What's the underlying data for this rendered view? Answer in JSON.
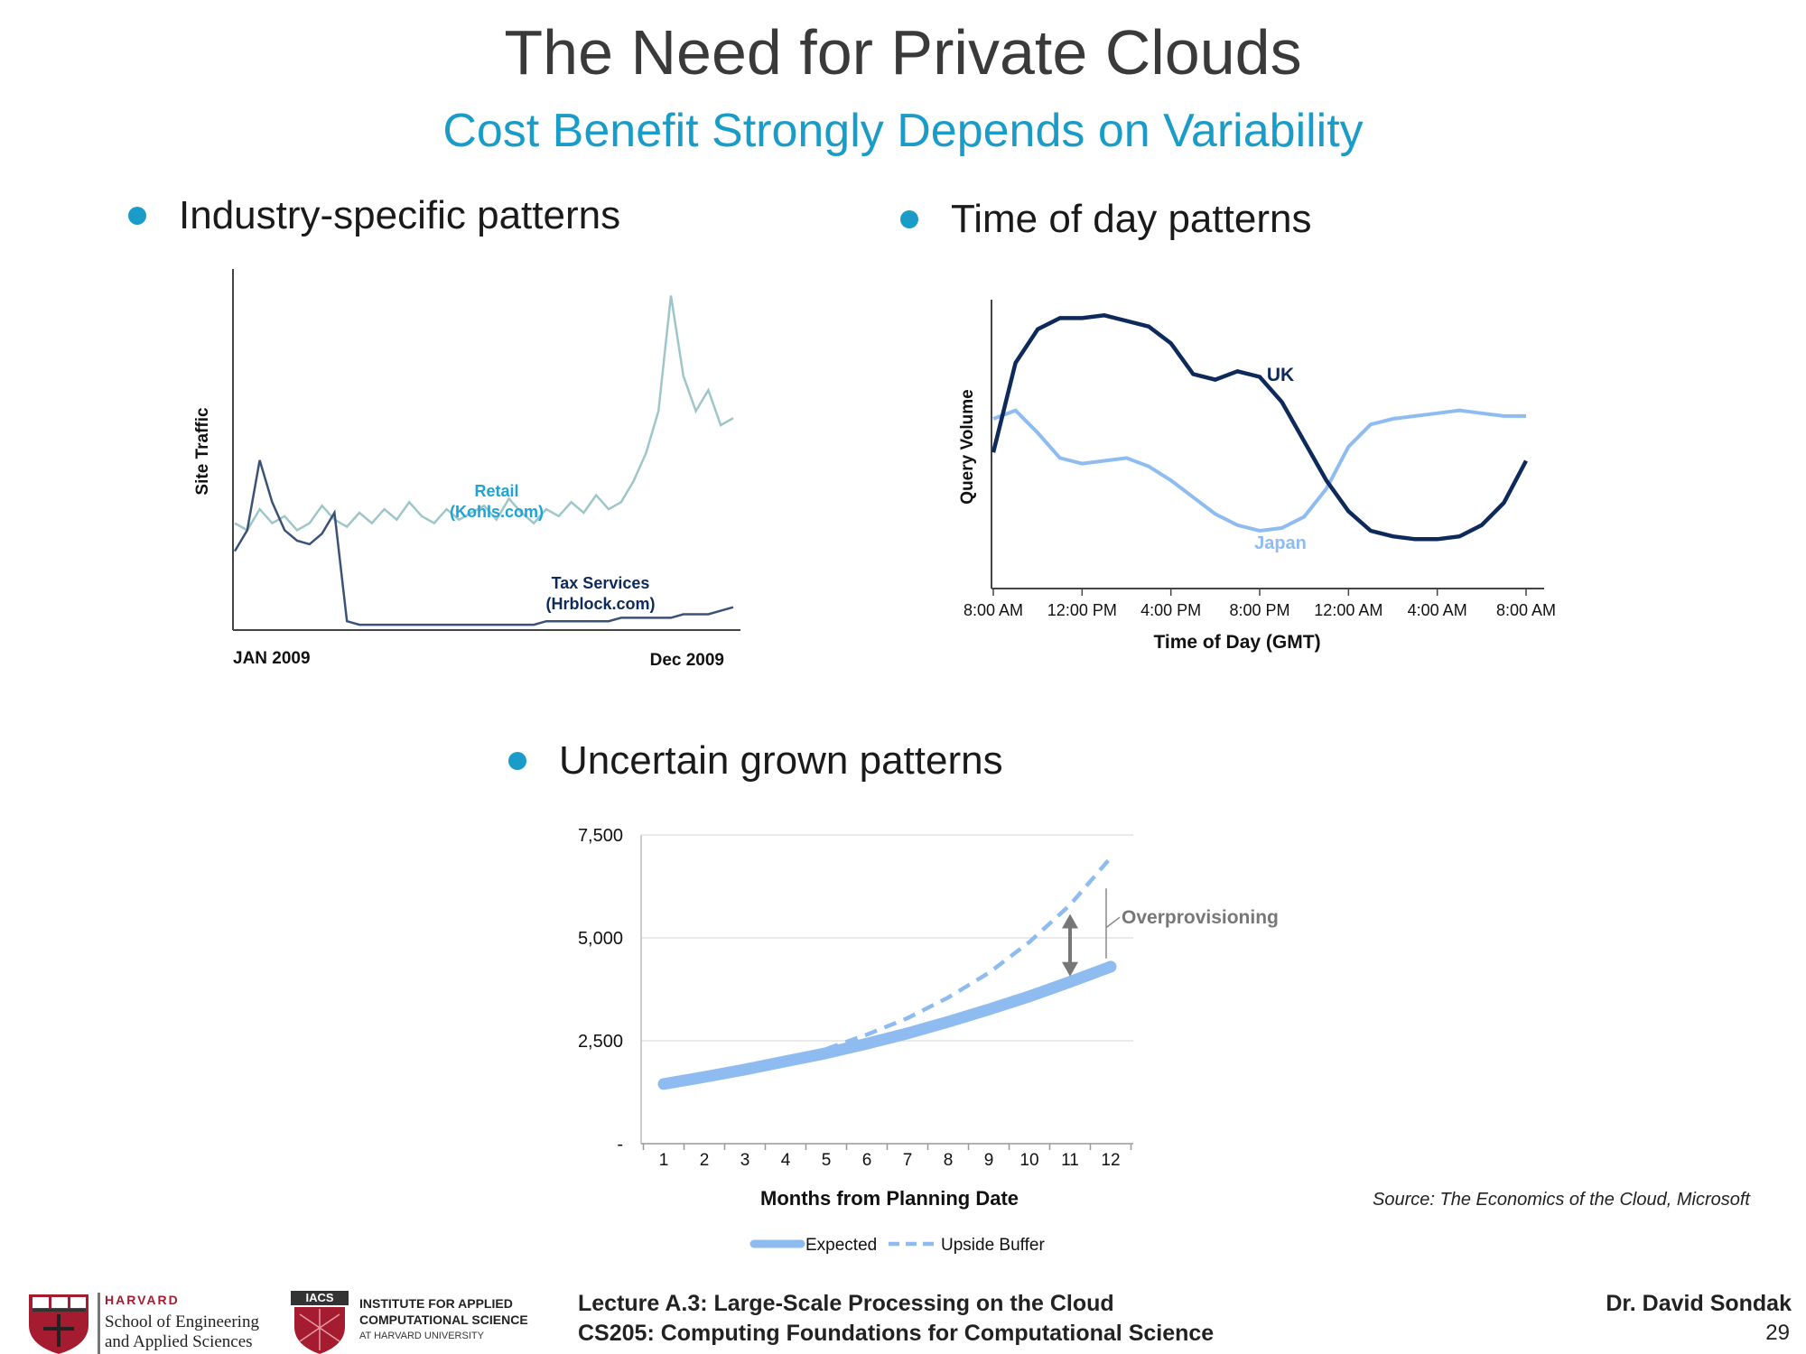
{
  "slide": {
    "title": "The Need for Private Clouds",
    "subtitle": "Cost Benefit Strongly Depends on Variability",
    "bullets": [
      "Industry-specific patterns",
      "Time of day patterns",
      "Uncertain grown patterns"
    ],
    "source": "Source: The Economics of the Cloud, Microsoft",
    "colors": {
      "accent": "#1a9cc8",
      "navy": "#0d2a5a",
      "light_blue": "#8fbcf0",
      "retail": "#9ec6c8"
    }
  },
  "footer": {
    "harvard_label": "HARVARD",
    "seas_line1": "School of Engineering",
    "seas_line2": "and Applied Sciences",
    "iacs_badge": "IACS",
    "iacs_line1": "INSTITUTE FOR APPLIED",
    "iacs_line2": "COMPUTATIONAL SCIENCE",
    "iacs_line3": "AT HARVARD UNIVERSITY",
    "lecture": "Lecture A.3: Large-Scale Processing on the Cloud",
    "course": "CS205: Computing Foundations for Computational Science",
    "author": "Dr. David Sondak",
    "page": "29"
  },
  "chart_data": [
    {
      "type": "line",
      "ylabel": "Site Traffic",
      "x_tick_labels": [
        "JAN 2009",
        "Dec 2009"
      ],
      "series": [
        {
          "name": "Retail (Kohls.com)",
          "name_line1": "Retail",
          "name_line2": "(Kohls.com)",
          "color": "#9ec6c8",
          "values": [
            30,
            28,
            34,
            30,
            32,
            28,
            30,
            35,
            31,
            29,
            33,
            30,
            34,
            31,
            36,
            32,
            30,
            34,
            31,
            33,
            35,
            31,
            37,
            33,
            30,
            34,
            32,
            36,
            33,
            38,
            34,
            36,
            42,
            50,
            62,
            95,
            72,
            62,
            68,
            58,
            60
          ]
        },
        {
          "name": "Tax Services (Hrblock.com)",
          "name_line1": "Tax Services",
          "name_line2": "(Hrblock.com)",
          "color": "#0d2a5a",
          "values": [
            22,
            28,
            48,
            36,
            28,
            25,
            24,
            27,
            33,
            2,
            1,
            1,
            1,
            1,
            1,
            1,
            1,
            1,
            1,
            1,
            1,
            1,
            1,
            1,
            1,
            2,
            2,
            2,
            2,
            2,
            2,
            3,
            3,
            3,
            3,
            3,
            4,
            4,
            4,
            5,
            6
          ]
        }
      ]
    },
    {
      "type": "line",
      "xlabel": "Time of Day (GMT)",
      "ylabel": "Query Volume",
      "x_tick_labels": [
        "8:00 AM",
        "12:00 PM",
        "4:00 PM",
        "8:00 PM",
        "12:00 AM",
        "4:00 AM",
        "8:00 AM"
      ],
      "series": [
        {
          "name": "UK",
          "color": "#0d2a5a",
          "x": [
            0,
            1,
            2,
            3,
            4,
            5,
            6,
            7,
            8,
            9,
            10,
            11,
            12,
            13,
            14,
            15,
            16,
            17,
            18,
            19,
            20,
            21,
            22,
            23,
            24
          ],
          "values": [
            48,
            80,
            92,
            96,
            96,
            97,
            95,
            93,
            87,
            76,
            74,
            77,
            75,
            66,
            52,
            38,
            27,
            20,
            18,
            17,
            17,
            18,
            22,
            30,
            45
          ]
        },
        {
          "name": "Japan",
          "color": "#8fbcf0",
          "x": [
            0,
            1,
            2,
            3,
            4,
            5,
            6,
            7,
            8,
            9,
            10,
            11,
            12,
            13,
            14,
            15,
            16,
            17,
            18,
            19,
            20,
            21,
            22,
            23,
            24
          ],
          "values": [
            60,
            63,
            55,
            46,
            44,
            45,
            46,
            43,
            38,
            32,
            26,
            22,
            20,
            21,
            25,
            35,
            50,
            58,
            60,
            61,
            62,
            63,
            62,
            61,
            61
          ]
        }
      ]
    },
    {
      "type": "line",
      "xlabel": "Months from Planning Date",
      "categories": [
        "1",
        "2",
        "3",
        "4",
        "5",
        "6",
        "7",
        "8",
        "9",
        "10",
        "11",
        "12"
      ],
      "y_tick_labels": [
        "-",
        "2,500",
        "5,000",
        "7,500"
      ],
      "ylim": [
        0,
        7500
      ],
      "annotation": "Overprovisioning",
      "series": [
        {
          "name": "Expected",
          "color": "#8fbcf0",
          "values": [
            1450,
            1620,
            1800,
            2000,
            2200,
            2430,
            2680,
            2960,
            3260,
            3580,
            3930,
            4300
          ]
        },
        {
          "name": "Upside Buffer",
          "color": "#8fbcf0",
          "values": [
            1450,
            1620,
            1800,
            2000,
            2300,
            2650,
            3050,
            3550,
            4150,
            4900,
            5800,
            6950
          ]
        }
      ]
    }
  ]
}
